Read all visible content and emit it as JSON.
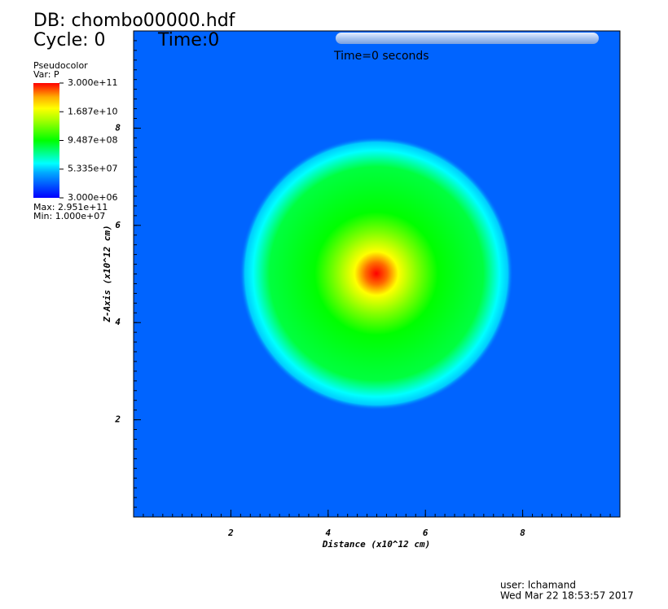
{
  "chart_data": {
    "type": "pseudocolor",
    "database": "DB: chombo00000.hdf",
    "cycle": "Cycle: 0",
    "time": "Time:0",
    "time_annotation": "Time=0 seconds",
    "plot_name": "Pseudocolor",
    "variable": "Var: P",
    "max_label": "Max:  2.951e+11",
    "min_label": "Min:  1.000e+07",
    "user": "user: lchamand",
    "date": "Wed Mar 22 18:53:57 2017",
    "xlabel": "Distance (x10^12 cm)",
    "ylabel": "Z-Axis (x10^12 cm)",
    "xlim": [
      0,
      10
    ],
    "xticks": [
      2,
      4,
      6,
      8
    ],
    "ylim": [
      0,
      10
    ],
    "yticks": [
      2,
      4,
      6,
      8
    ],
    "colorbar": {
      "log_scale": true,
      "lim": [
        3000000,
        300000000000
      ],
      "ticks": [
        {
          "value": 3000000,
          "label": "3.000e+06"
        },
        {
          "value": 53350000,
          "label": "5.335e+07"
        },
        {
          "value": 948700000,
          "label": "9.487e+08"
        },
        {
          "value": 16870000000,
          "label": "1.687e+10"
        },
        {
          "value": 300000000000,
          "label": "3.000e+11"
        }
      ]
    }
  }
}
